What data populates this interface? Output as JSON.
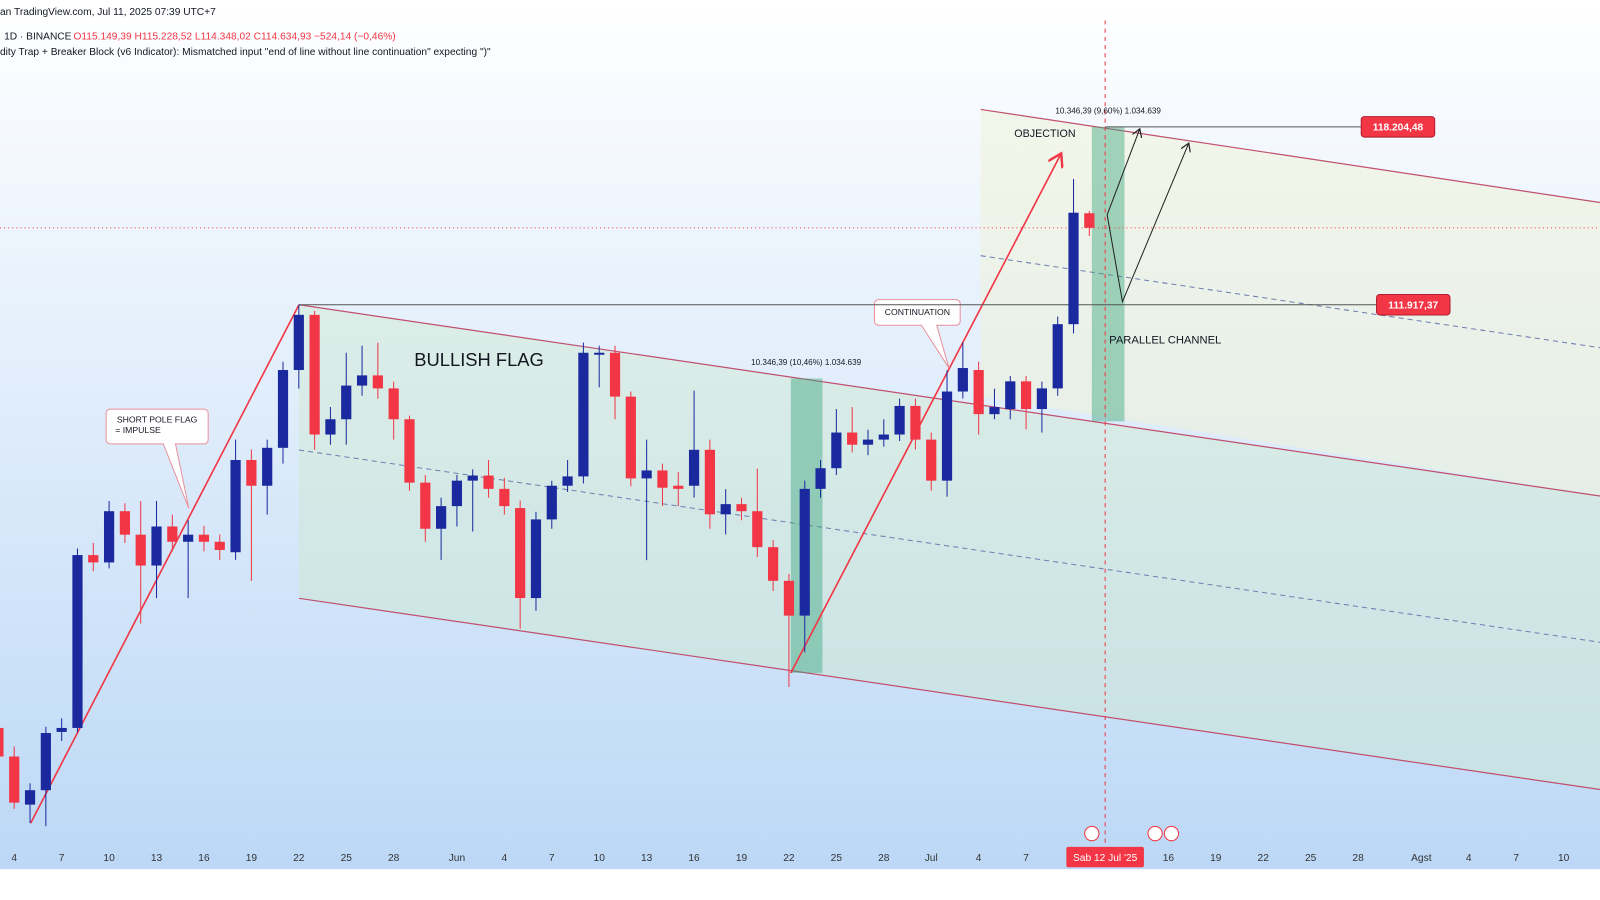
{
  "header": {
    "source": "an TradingView.com, Jul 11, 2025 07:39 UTC+7",
    "symbol": "1D · BINANCE",
    "ohlc": "O115.149,39 H115.228,52 L114.348,02 C114.634,93 −524,14 (−0,46%)",
    "indicator": "dity Trap + Breaker Block (v6 Indicator): Mismatched input \"end of line without line continuation\" expecting \")\""
  },
  "chart_data": {
    "type": "candlestick",
    "up_color": "#1a2a9e",
    "down_color": "#f23645",
    "x": [
      2,
      3,
      4,
      5,
      6,
      7,
      8,
      9,
      10,
      11,
      12,
      13,
      14,
      15,
      16,
      17,
      18,
      19,
      20,
      21,
      22,
      23,
      24,
      25,
      26,
      27,
      28,
      29,
      30,
      31,
      32,
      33,
      34,
      35,
      36,
      37,
      38,
      39,
      40,
      41,
      42,
      43,
      44,
      45,
      46,
      47,
      48,
      49,
      50,
      51,
      52,
      53,
      54,
      55,
      56,
      57,
      58,
      59,
      60,
      61,
      62,
      63,
      64,
      65,
      66,
      67,
      68,
      69,
      70,
      71
    ],
    "open": [
      96960,
      95950,
      94250,
      94760,
      96820,
      96960,
      103070,
      102810,
      104620,
      103790,
      102700,
      104080,
      103540,
      103790,
      103540,
      103170,
      106430,
      105520,
      106860,
      109610,
      111560,
      107330,
      107870,
      109060,
      109420,
      108960,
      107870,
      105630,
      104000,
      104800,
      105700,
      105880,
      105410,
      104730,
      101550,
      104330,
      105520,
      105850,
      110150,
      110220,
      108670,
      105780,
      106060,
      105520,
      105520,
      106790,
      104510,
      104870,
      104620,
      103350,
      102160,
      100930,
      105410,
      106140,
      107400,
      106970,
      107150,
      107330,
      108340,
      107150,
      105700,
      108850,
      109610,
      108050,
      108230,
      109210,
      108230,
      108960,
      111230,
      115149.39
    ],
    "high": [
      97200,
      96310,
      95000,
      97000,
      97300,
      103300,
      103500,
      104980,
      104900,
      104980,
      104980,
      104500,
      104300,
      104100,
      103800,
      107150,
      106800,
      107150,
      109900,
      111920,
      111700,
      108300,
      110220,
      110470,
      110580,
      109200,
      108000,
      105900,
      105100,
      105900,
      106100,
      106430,
      105800,
      105000,
      104600,
      105700,
      106430,
      110580,
      110470,
      110470,
      108850,
      107150,
      106300,
      106000,
      108880,
      107150,
      105400,
      105100,
      106130,
      103600,
      102400,
      105700,
      106430,
      108230,
      108300,
      107500,
      107870,
      108600,
      108600,
      107400,
      109600,
      110580,
      109900,
      108950,
      109400,
      109400,
      109200,
      111500,
      116360,
      115228.52
    ],
    "low": [
      95800,
      94100,
      93600,
      93490,
      96500,
      96800,
      102500,
      102600,
      103500,
      100650,
      101550,
      103200,
      101550,
      103200,
      102900,
      102900,
      102160,
      104500,
      106300,
      108950,
      106790,
      106970,
      106970,
      108700,
      108600,
      107150,
      105340,
      103540,
      102900,
      104080,
      103900,
      105100,
      104500,
      100460,
      101100,
      104000,
      105300,
      105600,
      109000,
      107870,
      105500,
      102890,
      104800,
      104800,
      105100,
      104000,
      103800,
      104300,
      103000,
      101800,
      98410,
      99630,
      105100,
      105900,
      106700,
      106600,
      106900,
      107100,
      106800,
      105340,
      105130,
      108600,
      107330,
      107870,
      107870,
      107510,
      107400,
      108700,
      110900,
      114348.02
    ],
    "close": [
      95950,
      94320,
      94760,
      96780,
      96960,
      103070,
      102810,
      104620,
      103790,
      102700,
      104080,
      103540,
      103790,
      103540,
      103250,
      106430,
      105520,
      106860,
      109610,
      111560,
      107330,
      107870,
      109060,
      109420,
      108960,
      107870,
      105630,
      104000,
      104800,
      105700,
      105880,
      105410,
      104800,
      101550,
      104330,
      105520,
      105850,
      110220,
      110220,
      108670,
      105780,
      106060,
      105450,
      105410,
      106790,
      104510,
      104870,
      104620,
      103350,
      102160,
      100930,
      105410,
      106140,
      107400,
      106970,
      107150,
      107330,
      108340,
      107150,
      105700,
      108850,
      109680,
      108050,
      108300,
      109210,
      108230,
      108960,
      111230,
      115170,
      114634.93
    ],
    "xlim": [
      2.1,
      103.3
    ],
    "xticks": [
      {
        "value": 3,
        "label": "4"
      },
      {
        "value": 6,
        "label": "7"
      },
      {
        "value": 9,
        "label": "10"
      },
      {
        "value": 12,
        "label": "13"
      },
      {
        "value": 15,
        "label": "16"
      },
      {
        "value": 18,
        "label": "19"
      },
      {
        "value": 21,
        "label": "22"
      },
      {
        "value": 24,
        "label": "25"
      },
      {
        "value": 27,
        "label": "28"
      },
      {
        "value": 31,
        "label": "Jun"
      },
      {
        "value": 34,
        "label": "4"
      },
      {
        "value": 37,
        "label": "7"
      },
      {
        "value": 40,
        "label": "10"
      },
      {
        "value": 43,
        "label": "13"
      },
      {
        "value": 46,
        "label": "16"
      },
      {
        "value": 49,
        "label": "19"
      },
      {
        "value": 52,
        "label": "22"
      },
      {
        "value": 55,
        "label": "25"
      },
      {
        "value": 58,
        "label": "28"
      },
      {
        "value": 61,
        "label": "Jul"
      },
      {
        "value": 64,
        "label": "4"
      },
      {
        "value": 67,
        "label": "7"
      },
      {
        "value": 72,
        "label": "Sab 12 Jul '25"
      },
      {
        "value": 76,
        "label": "16"
      },
      {
        "value": 79,
        "label": "19"
      },
      {
        "value": 82,
        "label": "22"
      },
      {
        "value": 85,
        "label": "25"
      },
      {
        "value": 88,
        "label": "28"
      },
      {
        "value": 92,
        "label": "Agst"
      },
      {
        "value": 95,
        "label": "4"
      },
      {
        "value": 98,
        "label": "7"
      },
      {
        "value": 101,
        "label": "10"
      }
    ],
    "crosshair_x": 72,
    "ylim": [
      92000,
      122000
    ],
    "levels": [
      {
        "value": 118204.48,
        "label": "118.204,48"
      },
      {
        "value": 111917.37,
        "label": "111.917,37"
      }
    ],
    "annotations": {
      "flag": "BULLISH FLAG",
      "pole_1": "SHORT POLE FLAG",
      "pole_2": "= IMPULSE",
      "continuation": "CONTINUATION",
      "objection": "OBJECTION",
      "channel": "PARALLEL CHANNEL",
      "measure_1": "10.346,39 (10,46%) 1.034.639",
      "measure_2": "10.346,39 (9,60%) 1.034.639"
    }
  }
}
